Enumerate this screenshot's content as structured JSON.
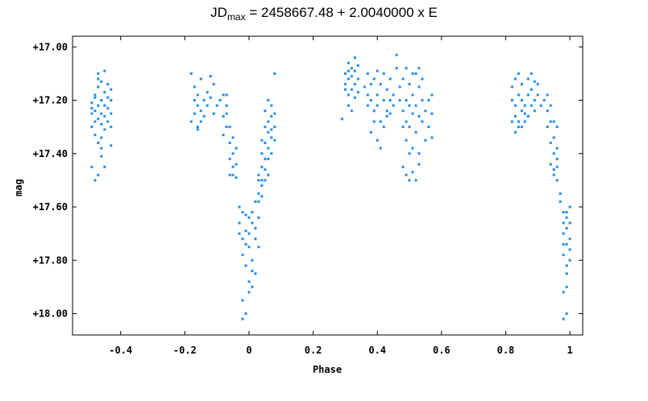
{
  "chart_data": {
    "type": "scatter",
    "title_prefix": "JD",
    "title_subscript": "max",
    "title_rest": " = 2458667.48 + 2.0040000 x E",
    "xlabel": "Phase",
    "ylabel": "mag",
    "xlim": [
      -0.55,
      1.04
    ],
    "ylim": [
      18.08,
      16.96
    ],
    "y_inverted": true,
    "grid": false,
    "legend": "none",
    "point_color": "#1e8cf0",
    "x_ticks": [
      -0.4,
      -0.2,
      0,
      0.2,
      0.4,
      0.6,
      0.8,
      1
    ],
    "x_tick_labels": [
      "-0.4",
      "-0.2",
      "0",
      "0.2",
      "0.4",
      "0.6",
      "0.8",
      "1"
    ],
    "y_ticks": [
      17.0,
      17.2,
      17.4,
      17.6,
      17.8,
      18.0
    ],
    "y_tick_labels": [
      "+17.00",
      "+17.20",
      "+17.40",
      "+17.60",
      "+17.80",
      "+18.00"
    ],
    "series": [
      {
        "values_description": "Phased light curve: photometric magnitude vs phase; primary minimum near phase 0 (~18.0 mag), maxima near 17.1–17.2 mag",
        "points": [
          [
            -0.49,
            17.25
          ],
          [
            -0.49,
            17.3
          ],
          [
            -0.49,
            17.21
          ],
          [
            -0.48,
            17.28
          ],
          [
            -0.48,
            17.18
          ],
          [
            -0.48,
            17.33
          ],
          [
            -0.48,
            17.24
          ],
          [
            -0.47,
            17.15
          ],
          [
            -0.47,
            17.27
          ],
          [
            -0.47,
            17.22
          ],
          [
            -0.47,
            17.36
          ],
          [
            -0.47,
            17.1
          ],
          [
            -0.46,
            17.2
          ],
          [
            -0.46,
            17.29
          ],
          [
            -0.46,
            17.13
          ],
          [
            -0.46,
            17.41
          ],
          [
            -0.46,
            17.25
          ],
          [
            -0.45,
            17.17
          ],
          [
            -0.45,
            17.31
          ],
          [
            -0.45,
            17.22
          ],
          [
            -0.45,
            17.09
          ],
          [
            -0.45,
            17.45
          ],
          [
            -0.47,
            17.48
          ],
          [
            -0.48,
            17.5
          ],
          [
            -0.49,
            17.45
          ],
          [
            -0.44,
            17.23
          ],
          [
            -0.44,
            17.14
          ],
          [
            -0.44,
            17.28
          ],
          [
            -0.43,
            17.25
          ],
          [
            -0.43,
            17.16
          ],
          [
            -0.43,
            17.3
          ],
          [
            -0.43,
            17.37
          ],
          [
            -0.43,
            17.2
          ],
          [
            -0.46,
            17.34
          ],
          [
            -0.47,
            17.12
          ],
          [
            -0.48,
            17.19
          ],
          [
            -0.45,
            17.26
          ],
          [
            -0.46,
            17.38
          ],
          [
            -0.49,
            17.23
          ],
          [
            -0.44,
            17.19
          ],
          [
            -0.18,
            17.28
          ],
          [
            -0.18,
            17.1
          ],
          [
            -0.17,
            17.2
          ],
          [
            -0.17,
            17.25
          ],
          [
            -0.17,
            17.15
          ],
          [
            -0.16,
            17.22
          ],
          [
            -0.16,
            17.3
          ],
          [
            -0.16,
            17.18
          ],
          [
            -0.15,
            17.24
          ],
          [
            -0.15,
            17.12
          ],
          [
            -0.14,
            17.2
          ],
          [
            -0.14,
            17.26
          ],
          [
            -0.13,
            17.17
          ],
          [
            -0.13,
            17.22
          ],
          [
            -0.12,
            17.11
          ],
          [
            -0.12,
            17.19
          ],
          [
            -0.11,
            17.25
          ],
          [
            -0.11,
            17.14
          ],
          [
            -0.16,
            17.31
          ],
          [
            -0.15,
            17.28
          ],
          [
            -0.1,
            17.22
          ],
          [
            -0.09,
            17.2
          ],
          [
            -0.08,
            17.18
          ],
          [
            -0.08,
            17.26
          ],
          [
            -0.07,
            17.3
          ],
          [
            -0.07,
            17.22
          ],
          [
            -0.06,
            17.36
          ],
          [
            -0.06,
            17.42
          ],
          [
            -0.05,
            17.4
          ],
          [
            -0.05,
            17.48
          ],
          [
            -0.06,
            17.3
          ],
          [
            -0.07,
            17.25
          ],
          [
            -0.05,
            17.34
          ],
          [
            -0.04,
            17.49
          ],
          [
            -0.04,
            17.38
          ],
          [
            -0.08,
            17.33
          ],
          [
            -0.07,
            17.18
          ],
          [
            -0.05,
            17.45
          ],
          [
            -0.06,
            17.48
          ],
          [
            -0.04,
            17.44
          ],
          [
            -0.03,
            17.6
          ],
          [
            -0.03,
            17.66
          ],
          [
            -0.02,
            17.62
          ],
          [
            -0.02,
            17.72
          ],
          [
            -0.02,
            17.78
          ],
          [
            -0.01,
            17.69
          ],
          [
            -0.01,
            17.82
          ],
          [
            -0.01,
            17.63
          ],
          [
            0.0,
            17.75
          ],
          [
            0.0,
            17.88
          ],
          [
            0.0,
            17.7
          ],
          [
            0.01,
            17.66
          ],
          [
            0.01,
            17.8
          ],
          [
            0.01,
            17.62
          ],
          [
            0.02,
            17.58
          ],
          [
            0.02,
            17.72
          ],
          [
            0.02,
            17.85
          ],
          [
            0.03,
            17.64
          ],
          [
            0.03,
            17.75
          ],
          [
            -0.02,
            17.95
          ],
          [
            -0.01,
            18.0
          ],
          [
            -0.02,
            18.02
          ],
          [
            0.0,
            17.92
          ],
          [
            0.01,
            17.9
          ],
          [
            0.02,
            17.68
          ],
          [
            -0.03,
            17.7
          ],
          [
            0.03,
            17.55
          ],
          [
            0.0,
            17.64
          ],
          [
            -0.01,
            17.74
          ],
          [
            0.01,
            17.84
          ],
          [
            0.03,
            17.5
          ],
          [
            0.04,
            17.45
          ],
          [
            0.04,
            17.52
          ],
          [
            0.04,
            17.4
          ],
          [
            0.05,
            17.36
          ],
          [
            0.05,
            17.46
          ],
          [
            0.05,
            17.3
          ],
          [
            0.06,
            17.38
          ],
          [
            0.06,
            17.28
          ],
          [
            0.06,
            17.42
          ],
          [
            0.07,
            17.26
          ],
          [
            0.07,
            17.34
          ],
          [
            0.07,
            17.22
          ],
          [
            0.08,
            17.3
          ],
          [
            0.08,
            17.25
          ],
          [
            0.08,
            17.1
          ],
          [
            0.05,
            17.5
          ],
          [
            0.04,
            17.56
          ],
          [
            0.06,
            17.32
          ],
          [
            0.03,
            17.48
          ],
          [
            0.07,
            17.4
          ],
          [
            0.06,
            17.2
          ],
          [
            0.05,
            17.24
          ],
          [
            0.04,
            17.35
          ],
          [
            0.08,
            17.35
          ],
          [
            0.07,
            17.31
          ],
          [
            0.06,
            17.48
          ],
          [
            0.05,
            17.42
          ],
          [
            0.04,
            17.5
          ],
          [
            0.03,
            17.58
          ],
          [
            0.29,
            17.27
          ],
          [
            0.3,
            17.14
          ],
          [
            0.3,
            17.1
          ],
          [
            0.31,
            17.06
          ],
          [
            0.31,
            17.18
          ],
          [
            0.31,
            17.12
          ],
          [
            0.32,
            17.08
          ],
          [
            0.32,
            17.16
          ],
          [
            0.32,
            17.11
          ],
          [
            0.33,
            17.14
          ],
          [
            0.33,
            17.09
          ],
          [
            0.33,
            17.19
          ],
          [
            0.34,
            17.12
          ],
          [
            0.34,
            17.07
          ],
          [
            0.31,
            17.22
          ],
          [
            0.32,
            17.24
          ],
          [
            0.3,
            17.16
          ],
          [
            0.33,
            17.04
          ],
          [
            0.34,
            17.17
          ],
          [
            0.31,
            17.09
          ],
          [
            0.36,
            17.15
          ],
          [
            0.37,
            17.18
          ],
          [
            0.37,
            17.1
          ],
          [
            0.38,
            17.2
          ],
          [
            0.38,
            17.14
          ],
          [
            0.39,
            17.24
          ],
          [
            0.39,
            17.12
          ],
          [
            0.4,
            17.18
          ],
          [
            0.4,
            17.22
          ],
          [
            0.41,
            17.14
          ],
          [
            0.41,
            17.28
          ],
          [
            0.42,
            17.2
          ],
          [
            0.42,
            17.1
          ],
          [
            0.43,
            17.24
          ],
          [
            0.43,
            17.16
          ],
          [
            0.44,
            17.2
          ],
          [
            0.44,
            17.12
          ],
          [
            0.45,
            17.22
          ],
          [
            0.45,
            17.18
          ],
          [
            0.46,
            17.08
          ],
          [
            0.38,
            17.32
          ],
          [
            0.4,
            17.35
          ],
          [
            0.41,
            17.38
          ],
          [
            0.42,
            17.3
          ],
          [
            0.39,
            17.28
          ],
          [
            0.43,
            17.26
          ],
          [
            0.44,
            17.25
          ],
          [
            0.46,
            17.03
          ],
          [
            0.37,
            17.22
          ],
          [
            0.4,
            17.09
          ],
          [
            0.47,
            17.2
          ],
          [
            0.47,
            17.15
          ],
          [
            0.48,
            17.24
          ],
          [
            0.48,
            17.3
          ],
          [
            0.48,
            17.12
          ],
          [
            0.49,
            17.2
          ],
          [
            0.49,
            17.28
          ],
          [
            0.49,
            17.35
          ],
          [
            0.5,
            17.22
          ],
          [
            0.5,
            17.14
          ],
          [
            0.5,
            17.3
          ],
          [
            0.51,
            17.25
          ],
          [
            0.51,
            17.18
          ],
          [
            0.51,
            17.38
          ],
          [
            0.52,
            17.22
          ],
          [
            0.52,
            17.1
          ],
          [
            0.52,
            17.32
          ],
          [
            0.53,
            17.26
          ],
          [
            0.53,
            17.15
          ],
          [
            0.53,
            17.4
          ],
          [
            0.54,
            17.2
          ],
          [
            0.54,
            17.28
          ],
          [
            0.54,
            17.12
          ],
          [
            0.55,
            17.24
          ],
          [
            0.55,
            17.35
          ],
          [
            0.56,
            17.2
          ],
          [
            0.56,
            17.3
          ],
          [
            0.57,
            17.25
          ],
          [
            0.57,
            17.18
          ],
          [
            0.57,
            17.34
          ],
          [
            0.48,
            17.45
          ],
          [
            0.49,
            17.48
          ],
          [
            0.5,
            17.5
          ],
          [
            0.51,
            17.47
          ],
          [
            0.52,
            17.5
          ],
          [
            0.53,
            17.44
          ],
          [
            0.5,
            17.4
          ],
          [
            0.49,
            17.08
          ],
          [
            0.51,
            17.1
          ],
          [
            0.53,
            17.08
          ],
          [
            0.82,
            17.2
          ],
          [
            0.82,
            17.15
          ],
          [
            0.83,
            17.22
          ],
          [
            0.83,
            17.12
          ],
          [
            0.83,
            17.26
          ],
          [
            0.84,
            17.18
          ],
          [
            0.84,
            17.1
          ],
          [
            0.84,
            17.28
          ],
          [
            0.85,
            17.2
          ],
          [
            0.85,
            17.14
          ],
          [
            0.85,
            17.3
          ],
          [
            0.86,
            17.22
          ],
          [
            0.86,
            17.25
          ],
          [
            0.87,
            17.18
          ],
          [
            0.87,
            17.12
          ],
          [
            0.88,
            17.22
          ],
          [
            0.88,
            17.16
          ],
          [
            0.89,
            17.2
          ],
          [
            0.89,
            17.24
          ],
          [
            0.9,
            17.18
          ],
          [
            0.9,
            17.14
          ],
          [
            0.91,
            17.22
          ],
          [
            0.83,
            17.32
          ],
          [
            0.84,
            17.3
          ],
          [
            0.86,
            17.28
          ],
          [
            0.88,
            17.1
          ],
          [
            0.85,
            17.24
          ],
          [
            0.82,
            17.28
          ],
          [
            0.87,
            17.26
          ],
          [
            0.89,
            17.13
          ],
          [
            0.92,
            17.2
          ],
          [
            0.93,
            17.24
          ],
          [
            0.93,
            17.3
          ],
          [
            0.94,
            17.28
          ],
          [
            0.94,
            17.36
          ],
          [
            0.95,
            17.4
          ],
          [
            0.95,
            17.46
          ],
          [
            0.96,
            17.42
          ],
          [
            0.96,
            17.5
          ],
          [
            0.95,
            17.34
          ],
          [
            0.94,
            17.22
          ],
          [
            0.93,
            17.18
          ],
          [
            0.96,
            17.38
          ],
          [
            0.95,
            17.48
          ],
          [
            0.96,
            17.45
          ],
          [
            0.97,
            17.55
          ],
          [
            0.97,
            17.58
          ],
          [
            0.96,
            17.3
          ],
          [
            0.94,
            17.44
          ],
          [
            0.95,
            17.28
          ],
          [
            0.98,
            17.62
          ],
          [
            0.98,
            17.7
          ],
          [
            0.98,
            17.78
          ],
          [
            0.99,
            17.64
          ],
          [
            0.99,
            17.74
          ],
          [
            0.99,
            17.82
          ],
          [
            0.99,
            17.68
          ],
          [
            1.0,
            17.72
          ],
          [
            1.0,
            17.66
          ],
          [
            1.0,
            17.8
          ],
          [
            0.98,
            17.92
          ],
          [
            0.99,
            18.0
          ],
          [
            0.98,
            18.02
          ],
          [
            0.99,
            17.9
          ],
          [
            1.0,
            17.6
          ],
          [
            0.99,
            17.85
          ],
          [
            0.98,
            17.66
          ],
          [
            1.0,
            17.76
          ],
          [
            0.99,
            17.62
          ],
          [
            0.98,
            17.74
          ]
        ]
      }
    ]
  }
}
